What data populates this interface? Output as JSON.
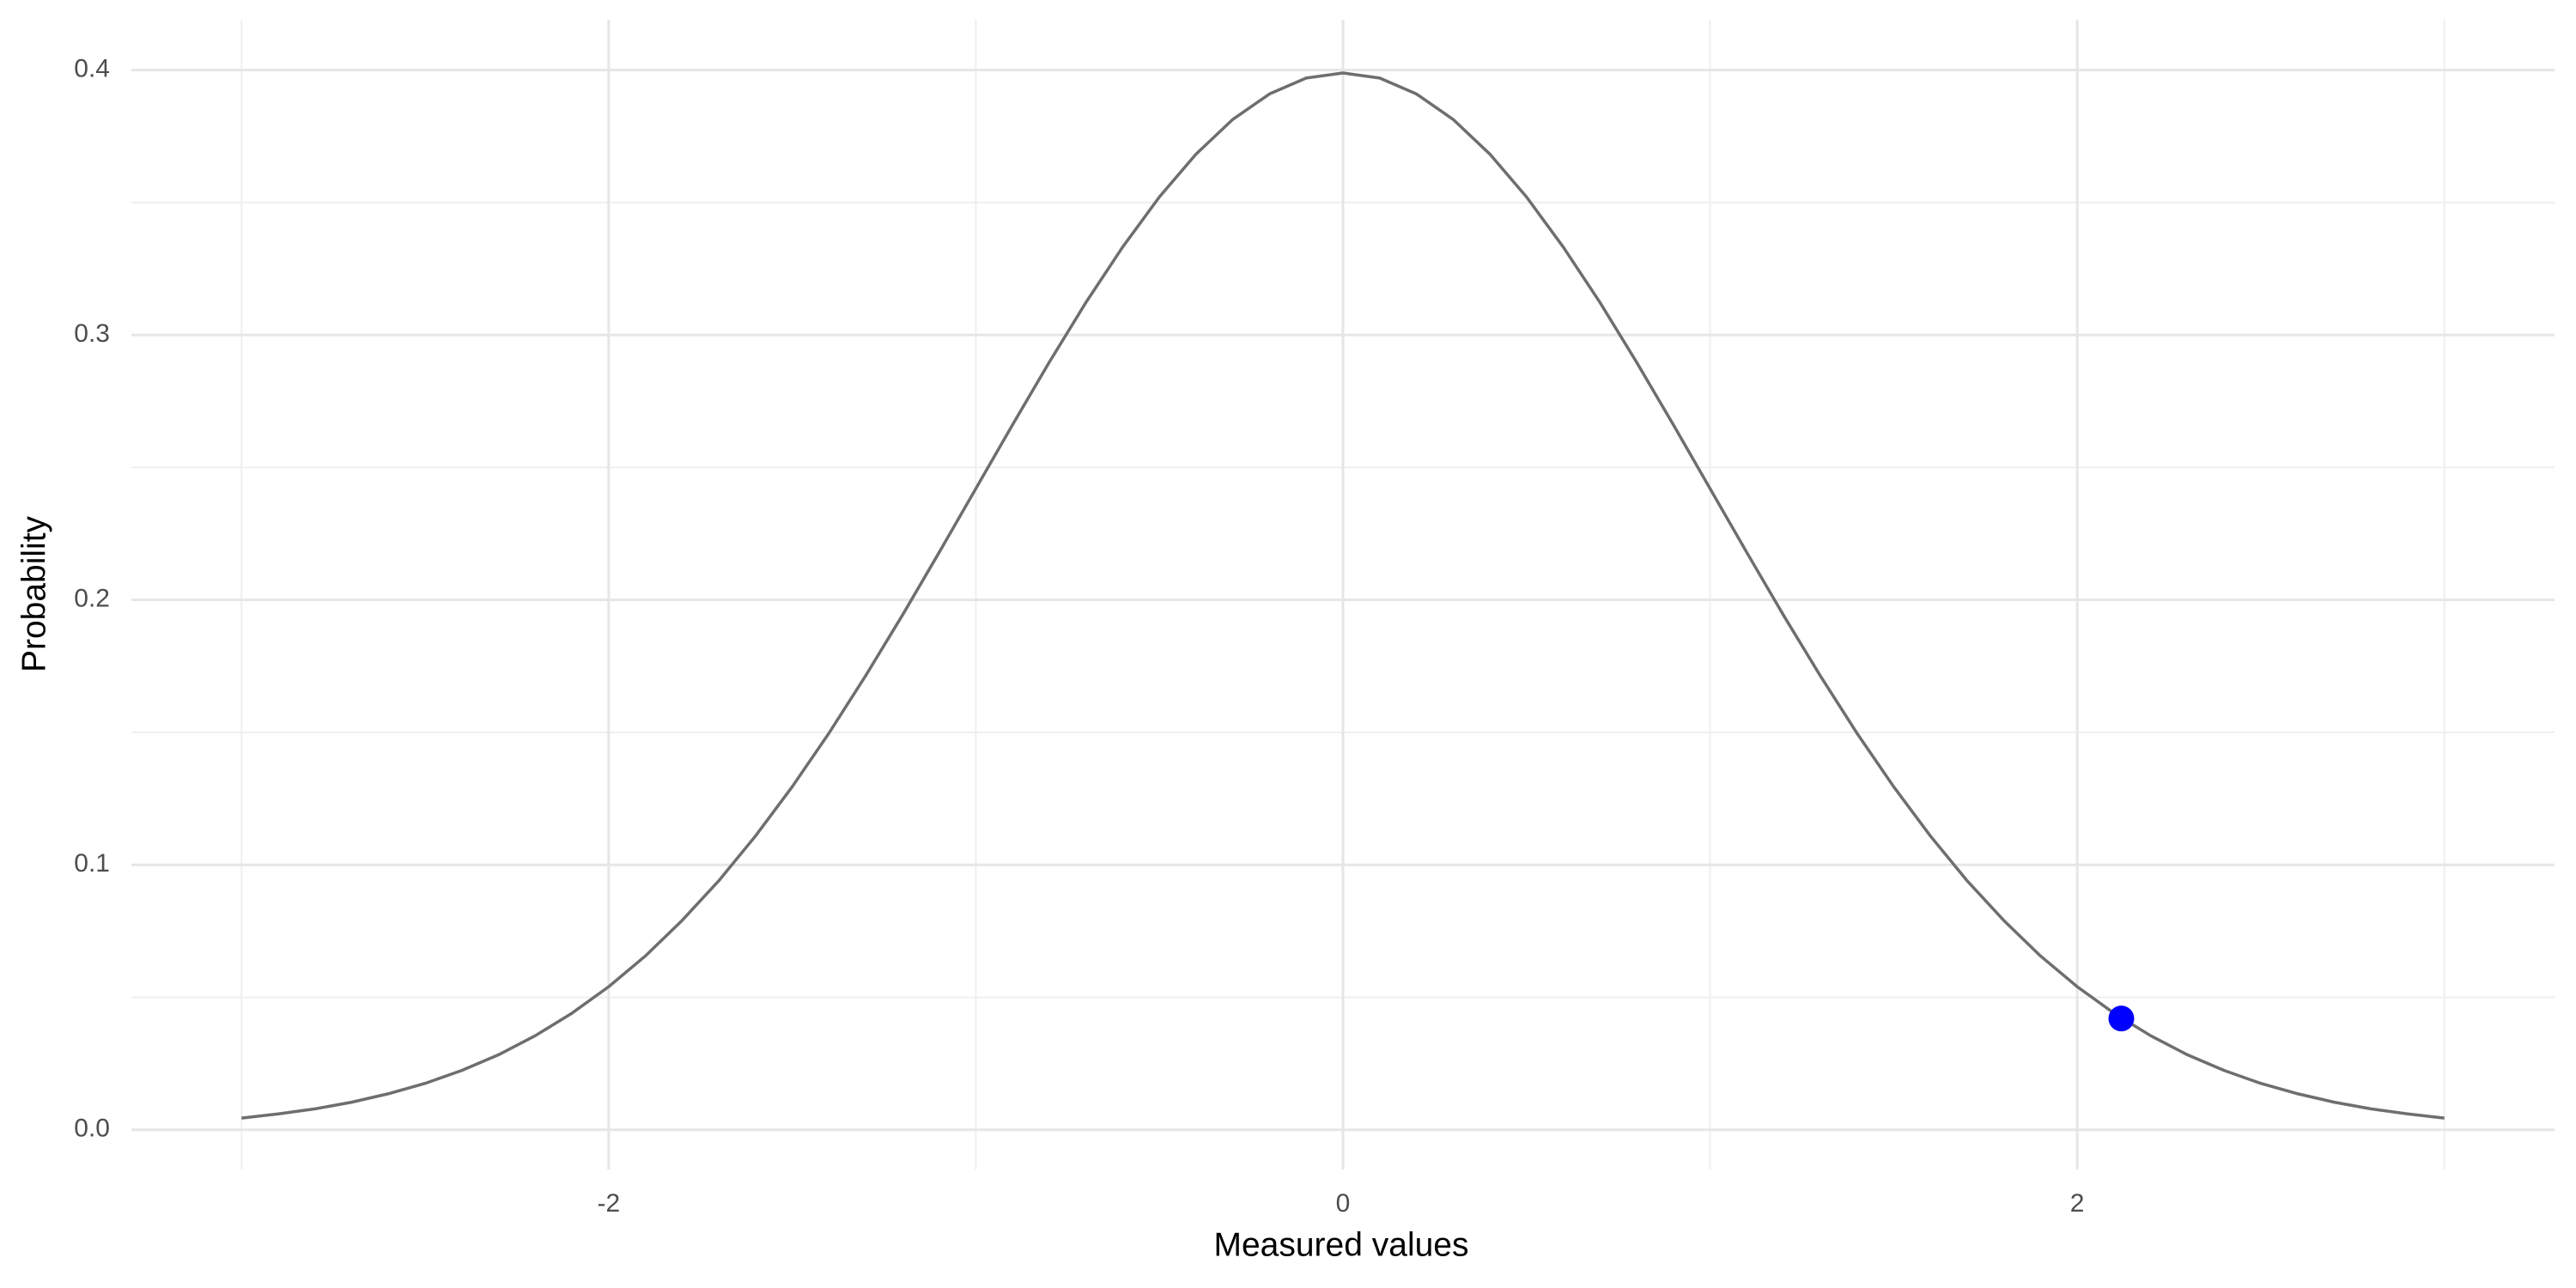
{
  "chart_data": {
    "type": "line",
    "x_label": "Measured values",
    "y_label": "Probability",
    "xlim": [
      -3.3,
      3.3
    ],
    "ylim": [
      -0.015,
      0.419
    ],
    "xticks": [
      -2,
      0,
      2
    ],
    "xminor": [
      -3,
      -1,
      1,
      3
    ],
    "yticks": [
      {
        "value": 0,
        "label": "0.0"
      },
      0.1,
      0.2,
      0.3,
      0.4
    ],
    "yminor": [
      0.05,
      0.15,
      0.25,
      0.35
    ],
    "grid": true,
    "line": {
      "color": "#6e6e6e",
      "x": [
        -3.0,
        -2.9,
        -2.8,
        -2.7,
        -2.6,
        -2.5,
        -2.4,
        -2.3,
        -2.2,
        -2.1,
        -2.0,
        -1.9,
        -1.8,
        -1.7,
        -1.6,
        -1.5,
        -1.4,
        -1.3,
        -1.2,
        -1.1,
        -1.0,
        -0.9,
        -0.8,
        -0.7,
        -0.6,
        -0.5,
        -0.4,
        -0.3,
        -0.2,
        -0.1,
        0.0,
        0.1,
        0.2,
        0.3,
        0.4,
        0.5,
        0.6,
        0.7,
        0.8,
        0.9,
        1.0,
        1.1,
        1.2,
        1.3,
        1.4,
        1.5,
        1.6,
        1.7,
        1.8,
        1.9,
        2.0,
        2.1,
        2.2,
        2.3,
        2.4,
        2.5,
        2.6,
        2.7,
        2.8,
        2.9,
        3.0
      ],
      "y": [
        0.0044,
        0.006,
        0.0079,
        0.0104,
        0.0136,
        0.0175,
        0.0224,
        0.0283,
        0.0355,
        0.044,
        0.054,
        0.0656,
        0.079,
        0.094,
        0.1109,
        0.1295,
        0.1497,
        0.1714,
        0.1942,
        0.2179,
        0.242,
        0.2661,
        0.2897,
        0.3123,
        0.3332,
        0.3521,
        0.3683,
        0.3814,
        0.391,
        0.397,
        0.3989,
        0.397,
        0.391,
        0.3814,
        0.3683,
        0.3521,
        0.3332,
        0.3123,
        0.2897,
        0.2661,
        0.242,
        0.2179,
        0.1942,
        0.1714,
        0.1497,
        0.1295,
        0.1109,
        0.094,
        0.079,
        0.0656,
        0.054,
        0.044,
        0.0355,
        0.0283,
        0.0224,
        0.0175,
        0.0136,
        0.0104,
        0.0079,
        0.006,
        0.0044
      ]
    },
    "points": {
      "color": "#0000ff",
      "x": [
        2.12
      ],
      "y": [
        0.042
      ]
    }
  }
}
